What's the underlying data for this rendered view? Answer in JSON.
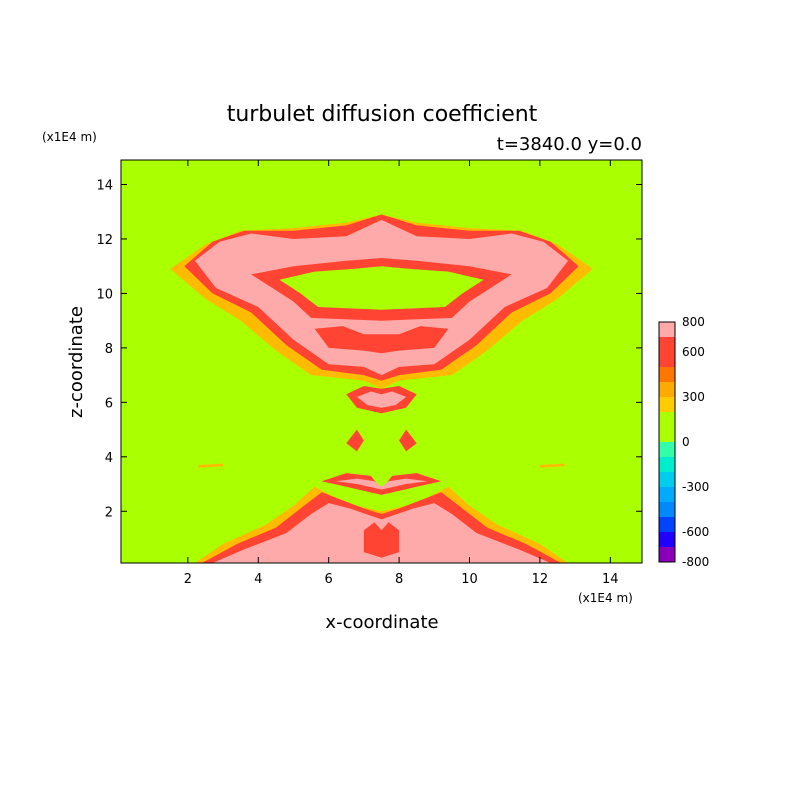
{
  "chart_data": {
    "type": "heatmap",
    "title": "turbulet diffusion coefficient",
    "subtitle": "t=3840.0 y=0.0",
    "xlabel": "x-coordinate",
    "ylabel": "z-coordinate",
    "x_unit": "(x1E4 m)",
    "y_unit": "(x1E4 m)",
    "xlim": [
      0.1,
      14.9
    ],
    "ylim": [
      0.1,
      14.9
    ],
    "x_ticks": [
      2,
      4,
      6,
      8,
      10,
      12,
      14
    ],
    "y_ticks": [
      2,
      4,
      6,
      8,
      10,
      12,
      14
    ],
    "background_level": 0,
    "colorbar": {
      "tick_labels": [
        "800",
        "600",
        "300",
        "0",
        "-300",
        "-600",
        "-800"
      ],
      "levels": [
        -800,
        -700,
        -600,
        -500,
        -400,
        -300,
        -200,
        -100,
        0,
        100,
        200,
        300,
        400,
        500,
        600,
        700,
        800
      ],
      "colors": [
        "#8a00b8",
        "#2200ff",
        "#0044ff",
        "#0088ff",
        "#00aaff",
        "#00ccee",
        "#00eecc",
        "#33ffaa",
        "#aaff00",
        "#aaff00",
        "#ffcc00",
        "#ffaa00",
        "#ff7700",
        "#ff4433",
        "#ff4433",
        "#ffaaaa"
      ]
    },
    "regions": [
      {
        "level": 200,
        "color": "#ffbb00",
        "points": [
          [
            1.5,
            10.9
          ],
          [
            2.5,
            11.8
          ],
          [
            3.5,
            12.3
          ],
          [
            5.0,
            12.4
          ],
          [
            6.5,
            12.6
          ],
          [
            7.5,
            12.9
          ],
          [
            8.5,
            12.6
          ],
          [
            10.0,
            12.4
          ],
          [
            11.5,
            12.3
          ],
          [
            12.5,
            11.8
          ],
          [
            13.5,
            10.9
          ],
          [
            12.5,
            9.8
          ],
          [
            11.5,
            9.0
          ],
          [
            10.5,
            7.9
          ],
          [
            9.5,
            7.0
          ],
          [
            8.0,
            6.8
          ],
          [
            7.5,
            6.5
          ],
          [
            7.0,
            6.8
          ],
          [
            5.5,
            7.0
          ],
          [
            4.5,
            7.9
          ],
          [
            3.5,
            9.0
          ],
          [
            2.5,
            9.8
          ]
        ]
      },
      {
        "level": 500,
        "color": "#ff4433",
        "points": [
          [
            1.9,
            11.0
          ],
          [
            2.7,
            11.9
          ],
          [
            3.6,
            12.3
          ],
          [
            5.0,
            12.3
          ],
          [
            6.5,
            12.5
          ],
          [
            7.5,
            12.9
          ],
          [
            8.5,
            12.5
          ],
          [
            10.0,
            12.3
          ],
          [
            11.4,
            12.3
          ],
          [
            12.3,
            11.9
          ],
          [
            13.1,
            11.0
          ],
          [
            12.3,
            10.0
          ],
          [
            11.2,
            9.3
          ],
          [
            10.2,
            8.1
          ],
          [
            9.2,
            7.2
          ],
          [
            8.0,
            7.0
          ],
          [
            7.5,
            6.8
          ],
          [
            7.0,
            7.0
          ],
          [
            5.8,
            7.2
          ],
          [
            4.8,
            8.1
          ],
          [
            3.8,
            9.3
          ],
          [
            2.7,
            10.0
          ]
        ]
      },
      {
        "level": 700,
        "color": "#ffaaaa",
        "points": [
          [
            2.2,
            11.2
          ],
          [
            2.9,
            11.9
          ],
          [
            3.8,
            12.2
          ],
          [
            5.0,
            12.0
          ],
          [
            6.5,
            12.1
          ],
          [
            7.5,
            12.7
          ],
          [
            8.5,
            12.1
          ],
          [
            10.0,
            12.0
          ],
          [
            11.2,
            12.2
          ],
          [
            12.1,
            11.9
          ],
          [
            12.8,
            11.2
          ],
          [
            12.2,
            10.2
          ],
          [
            11.0,
            9.5
          ],
          [
            10.0,
            8.3
          ],
          [
            9.0,
            7.4
          ],
          [
            8.0,
            7.3
          ],
          [
            7.5,
            7.0
          ],
          [
            7.0,
            7.3
          ],
          [
            6.0,
            7.4
          ],
          [
            5.0,
            8.3
          ],
          [
            4.0,
            9.5
          ],
          [
            2.8,
            10.2
          ]
        ]
      },
      {
        "level": 500,
        "color": "#ff4433",
        "points": [
          [
            3.8,
            10.7
          ],
          [
            5.0,
            11.0
          ],
          [
            6.5,
            11.2
          ],
          [
            7.5,
            11.3
          ],
          [
            8.5,
            11.2
          ],
          [
            10.0,
            11.0
          ],
          [
            11.2,
            10.7
          ],
          [
            10.6,
            10.2
          ],
          [
            10.0,
            9.7
          ],
          [
            9.5,
            9.1
          ],
          [
            7.5,
            9.0
          ],
          [
            5.5,
            9.1
          ],
          [
            5.0,
            9.7
          ],
          [
            4.4,
            10.2
          ]
        ]
      },
      {
        "level": 0,
        "color": "#aaff00",
        "points": [
          [
            4.6,
            10.5
          ],
          [
            5.6,
            10.8
          ],
          [
            6.7,
            10.9
          ],
          [
            7.5,
            11.0
          ],
          [
            8.3,
            10.9
          ],
          [
            9.4,
            10.8
          ],
          [
            10.4,
            10.5
          ],
          [
            9.8,
            10.0
          ],
          [
            9.3,
            9.5
          ],
          [
            7.5,
            9.4
          ],
          [
            5.7,
            9.5
          ],
          [
            5.2,
            10.0
          ]
        ]
      },
      {
        "level": 500,
        "color": "#ff4433",
        "points": [
          [
            5.6,
            8.7
          ],
          [
            6.4,
            8.8
          ],
          [
            7.0,
            8.5
          ],
          [
            7.5,
            8.5
          ],
          [
            8.0,
            8.5
          ],
          [
            8.6,
            8.8
          ],
          [
            9.4,
            8.7
          ],
          [
            9.0,
            8.0
          ],
          [
            8.0,
            7.9
          ],
          [
            7.5,
            7.8
          ],
          [
            7.0,
            7.9
          ],
          [
            6.0,
            8.0
          ]
        ]
      },
      {
        "level": 500,
        "color": "#ff4433",
        "points": [
          [
            6.5,
            6.3
          ],
          [
            7.0,
            6.6
          ],
          [
            7.5,
            6.5
          ],
          [
            8.0,
            6.6
          ],
          [
            8.5,
            6.3
          ],
          [
            8.2,
            5.8
          ],
          [
            7.5,
            5.6
          ],
          [
            6.8,
            5.8
          ]
        ]
      },
      {
        "level": 700,
        "color": "#ffaaaa",
        "points": [
          [
            6.8,
            6.2
          ],
          [
            7.2,
            6.4
          ],
          [
            7.5,
            6.3
          ],
          [
            7.8,
            6.4
          ],
          [
            8.2,
            6.2
          ],
          [
            7.9,
            5.9
          ],
          [
            7.5,
            5.8
          ],
          [
            7.1,
            5.9
          ]
        ]
      },
      {
        "level": 500,
        "color": "#ff4433",
        "points": [
          [
            6.5,
            4.5
          ],
          [
            6.8,
            5.0
          ],
          [
            7.0,
            4.6
          ],
          [
            6.8,
            4.2
          ]
        ]
      },
      {
        "level": 500,
        "color": "#ff4433",
        "points": [
          [
            8.0,
            4.6
          ],
          [
            8.2,
            5.0
          ],
          [
            8.5,
            4.5
          ],
          [
            8.2,
            4.2
          ]
        ]
      },
      {
        "level": 500,
        "color": "#ff4433",
        "points": [
          [
            5.8,
            3.1
          ],
          [
            6.5,
            3.4
          ],
          [
            7.2,
            3.3
          ],
          [
            7.5,
            2.8
          ],
          [
            7.8,
            3.3
          ],
          [
            8.5,
            3.4
          ],
          [
            9.2,
            3.1
          ],
          [
            8.5,
            2.9
          ],
          [
            7.5,
            2.6
          ],
          [
            6.5,
            2.9
          ]
        ]
      },
      {
        "level": 700,
        "color": "#ffaaaa",
        "points": [
          [
            6.2,
            3.1
          ],
          [
            6.8,
            3.2
          ],
          [
            7.3,
            3.1
          ],
          [
            7.5,
            2.9
          ],
          [
            7.7,
            3.1
          ],
          [
            8.2,
            3.2
          ],
          [
            8.8,
            3.1
          ],
          [
            8.2,
            3.0
          ],
          [
            7.5,
            2.8
          ],
          [
            6.8,
            3.0
          ]
        ]
      },
      {
        "level": 200,
        "color": "#ffbb00",
        "points": [
          [
            2.2,
            0.1
          ],
          [
            3.0,
            0.8
          ],
          [
            4.2,
            1.5
          ],
          [
            5.0,
            2.2
          ],
          [
            5.6,
            2.9
          ],
          [
            6.2,
            2.5
          ],
          [
            6.8,
            2.2
          ],
          [
            7.5,
            2.0
          ],
          [
            8.2,
            2.2
          ],
          [
            8.8,
            2.5
          ],
          [
            9.4,
            2.9
          ],
          [
            10.0,
            2.2
          ],
          [
            10.8,
            1.5
          ],
          [
            12.0,
            0.8
          ],
          [
            12.8,
            0.1
          ]
        ]
      },
      {
        "level": 500,
        "color": "#ff4433",
        "points": [
          [
            2.4,
            0.1
          ],
          [
            3.4,
            0.8
          ],
          [
            4.5,
            1.4
          ],
          [
            5.2,
            2.1
          ],
          [
            5.8,
            2.7
          ],
          [
            6.4,
            2.4
          ],
          [
            7.0,
            2.1
          ],
          [
            7.5,
            1.9
          ],
          [
            8.0,
            2.1
          ],
          [
            8.6,
            2.4
          ],
          [
            9.2,
            2.7
          ],
          [
            9.8,
            2.1
          ],
          [
            10.5,
            1.4
          ],
          [
            11.6,
            0.8
          ],
          [
            12.6,
            0.1
          ]
        ]
      },
      {
        "level": 700,
        "color": "#ffaaaa",
        "points": [
          [
            2.7,
            0.1
          ],
          [
            3.6,
            0.6
          ],
          [
            4.8,
            1.2
          ],
          [
            5.5,
            1.9
          ],
          [
            6.0,
            2.3
          ],
          [
            6.6,
            2.1
          ],
          [
            7.5,
            1.7
          ],
          [
            8.4,
            2.1
          ],
          [
            9.0,
            2.3
          ],
          [
            9.5,
            1.9
          ],
          [
            10.2,
            1.2
          ],
          [
            11.4,
            0.6
          ],
          [
            12.3,
            0.1
          ]
        ]
      },
      {
        "level": 500,
        "color": "#ff4433",
        "points": [
          [
            7.0,
            0.5
          ],
          [
            7.0,
            1.3
          ],
          [
            7.3,
            1.6
          ],
          [
            7.5,
            1.3
          ],
          [
            7.7,
            1.6
          ],
          [
            8.0,
            1.3
          ],
          [
            8.0,
            0.5
          ],
          [
            7.5,
            0.3
          ]
        ]
      },
      {
        "level": 200,
        "color": "#ffbb00",
        "points": [
          [
            2.3,
            3.7
          ],
          [
            3.0,
            3.75
          ],
          [
            3.0,
            3.65
          ],
          [
            2.3,
            3.6
          ]
        ]
      },
      {
        "level": 200,
        "color": "#ffbb00",
        "points": [
          [
            12.0,
            3.7
          ],
          [
            12.7,
            3.75
          ],
          [
            12.7,
            3.65
          ],
          [
            12.0,
            3.6
          ]
        ]
      }
    ]
  }
}
